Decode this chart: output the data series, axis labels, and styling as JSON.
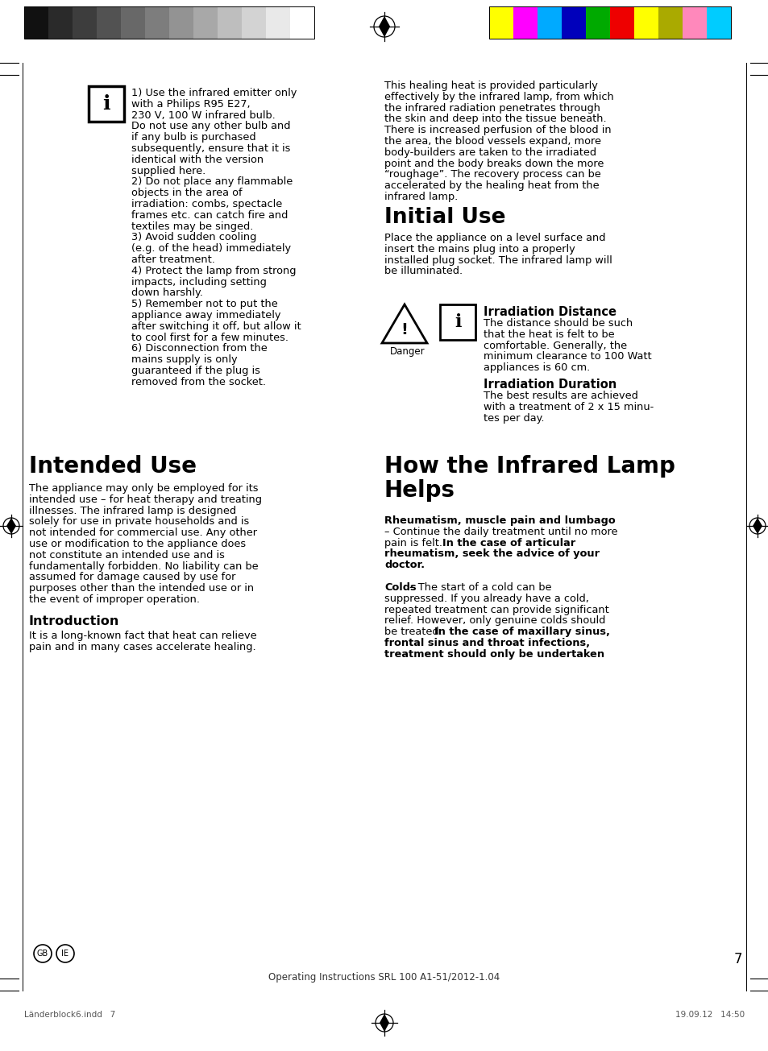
{
  "page_bg": "#ffffff",
  "top_gray_bars": [
    "#111111",
    "#2a2a2a",
    "#3d3d3d",
    "#525252",
    "#686868",
    "#7d7d7d",
    "#939393",
    "#a8a8a8",
    "#bebebe",
    "#d3d3d3",
    "#e9e9e9",
    "#ffffff"
  ],
  "top_color_bars": [
    "#ffff00",
    "#ff00ff",
    "#00aaff",
    "#0000bb",
    "#00aa00",
    "#ee0000",
    "#ffff00",
    "#aaaa00",
    "#ff88bb",
    "#00ccff"
  ],
  "bottom_center": "Operating Instructions SRL 100 A1-51/2012-1.04",
  "bottom_left": "Länderblock6.indd   7",
  "bottom_right": "19.09.12   14:50",
  "page_number": "7",
  "safety_lines": [
    "1) Use the infrared emitter only",
    "with a Philips R95 E27,",
    "230 V, 100 W infrared bulb.",
    "Do not use any other bulb and",
    "if any bulb is purchased",
    "subsequently, ensure that it is",
    "identical with the version",
    "supplied here.",
    "2) Do not place any flammable",
    "objects in the area of",
    "irradiation: combs, spectacle",
    "frames etc. can catch fire and",
    "textiles may be singed.",
    "3) Avoid sudden cooling",
    "(e.g. of the head) immediately",
    "after treatment.",
    "4) Protect the lamp from strong",
    "impacts, including setting",
    "down harshly.",
    "5) Remember not to put the",
    "appliance away immediately",
    "after switching it off, but allow it",
    "to cool first for a few minutes.",
    "6) Disconnection from the",
    "mains supply is only",
    "guaranteed if the plug is",
    "removed from the socket."
  ],
  "right_top_lines": [
    "This healing heat is provided particularly",
    "effectively by the infrared lamp, from which",
    "the infrared radiation penetrates through",
    "the skin and deep into the tissue beneath.",
    "There is increased perfusion of the blood in",
    "the area, the blood vessels expand, more",
    "body-builders are taken to the irradiated",
    "point and the body breaks down the more",
    "“roughage”. The recovery process can be",
    "accelerated by the healing heat from the",
    "infrared lamp."
  ],
  "initial_use_title": "Initial Use",
  "initial_use_lines": [
    "Place the appliance on a level surface and",
    "insert the mains plug into a properly",
    "installed plug socket. The infrared lamp will",
    "be illuminated."
  ],
  "irr_dist_title": "Irradiation Distance",
  "irr_dist_lines": [
    "The distance should be such",
    "that the heat is felt to be",
    "comfortable. Generally, the",
    "minimum clearance to 100 Watt",
    "appliances is 60 cm."
  ],
  "irr_dur_title": "Irradiation Duration",
  "irr_dur_lines": [
    "The best results are achieved",
    "with a treatment of 2 x 15 minu-",
    "tes per day."
  ],
  "intended_title": "Intended Use",
  "intended_lines": [
    "The appliance may only be employed for its",
    "intended use – for heat therapy and treating",
    "illnesses. The infrared lamp is designed",
    "solely for use in private households and is",
    "not intended for commercial use. Any other",
    "use or modification to the appliance does",
    "not constitute an intended use and is",
    "fundamentally forbidden. No liability can be",
    "assumed for damage caused by use for",
    "purposes other than the intended use or in",
    "the event of improper operation."
  ],
  "intro_title": "Introduction",
  "intro_lines": [
    "It is a long-known fact that heat can relieve",
    "pain and in many cases accelerate healing."
  ],
  "how_title1": "How the Infrared Lamp",
  "how_title2": "Helps",
  "rheum_bold": "Rheumatism, muscle pain and lumbago",
  "rheum_cont": "– Continue the daily treatment until no more",
  "rheum_line2_normal": "pain is felt. ",
  "rheum_line2_bold": "In the case of articular",
  "rheum_bold_lines": [
    "rheumatism, seek the advice of your",
    "doctor."
  ],
  "colds_bold": "Colds",
  "colds_cont": " – The start of a cold can be",
  "colds_lines": [
    "suppressed. If you already have a cold,",
    "repeated treatment can provide significant",
    "relief. However, only genuine colds should",
    "be treated. "
  ],
  "colds_bold_cont": "In the case of maxillary sinus,",
  "colds_bold_lines": [
    "frontal sinus and throat infections,",
    "treatment should only be undertaken"
  ]
}
